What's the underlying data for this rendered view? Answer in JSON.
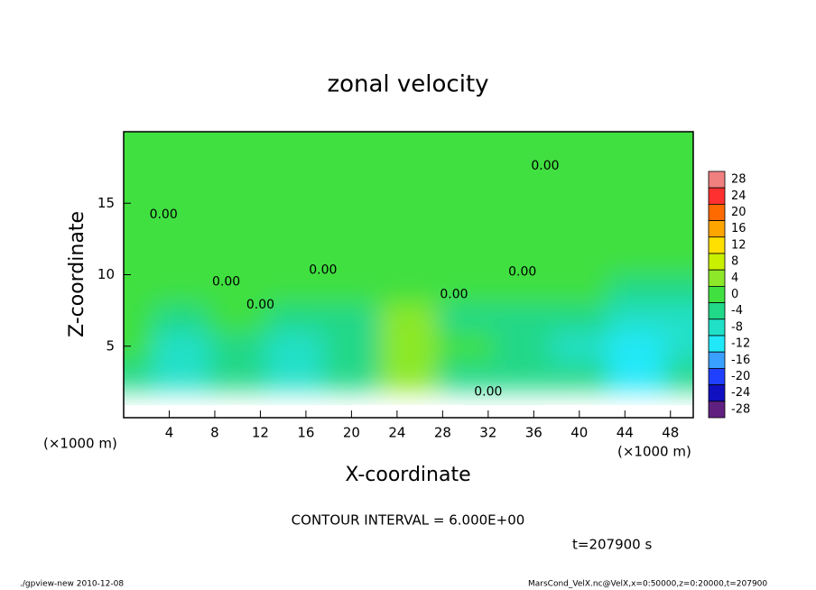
{
  "chart_data": {
    "type": "contour",
    "title": "zonal velocity",
    "x_label": "X-coordinate",
    "y_label": "Z-coordinate",
    "x_unit_left": "(×1000 m)",
    "x_unit_right": "(×1000 m)",
    "contour_interval": "CONTOUR INTERVAL = 6.000E+00",
    "time_label": "t=207900 s",
    "footer_left": "./gpview-new   2010-12-08",
    "footer_right": "MarsCond_VelX.nc@VelX,x=0:50000,z=0:20000,t=207900",
    "xlim": [
      0,
      50
    ],
    "ylim": [
      0,
      20
    ],
    "xticks": [
      4,
      8,
      12,
      16,
      20,
      24,
      28,
      32,
      36,
      40,
      44,
      48
    ],
    "yticks": [
      5,
      10,
      15
    ],
    "x": [
      0,
      5,
      10,
      15,
      20,
      25,
      30,
      35,
      40,
      45,
      50
    ],
    "y": [
      1,
      3,
      5,
      7,
      9,
      11,
      15,
      19
    ],
    "z": [
      [
        -5,
        -3,
        0,
        -7,
        -3,
        -5,
        -6,
        -2,
        6,
        -6,
        -5
      ],
      [
        -4,
        -6,
        -3,
        -6,
        -2,
        4,
        -4,
        -2,
        -4,
        -9,
        -4
      ],
      [
        2,
        -6,
        -2,
        -7,
        -4,
        6,
        2,
        -4,
        -6,
        -9,
        -7
      ],
      [
        3,
        -2,
        2,
        -2,
        -2,
        4,
        -2,
        -3,
        -3,
        -6,
        -8
      ],
      [
        1,
        0,
        1,
        0,
        1,
        1,
        0,
        1,
        0,
        -1,
        -2
      ],
      [
        1,
        2,
        1,
        1,
        2,
        1,
        1,
        2,
        1,
        1,
        1
      ],
      [
        1,
        1,
        2,
        2,
        2,
        2,
        2,
        2,
        2,
        2,
        2
      ],
      [
        1,
        1,
        1,
        2,
        2,
        2,
        2,
        2,
        2,
        2,
        2
      ]
    ],
    "contour_labels": [
      "0.00",
      "0.00",
      "0.00",
      "0.00",
      "0.00",
      "0.00",
      "0.00",
      "0.00"
    ],
    "colorbar": {
      "levels": [
        28,
        24,
        20,
        16,
        12,
        8,
        4,
        0,
        -4,
        -8,
        -12,
        -16,
        -20,
        -24,
        -28
      ],
      "colors": [
        "#f08080",
        "#ff3030",
        "#ff6a00",
        "#ffa500",
        "#ffe000",
        "#c8f000",
        "#8ce828",
        "#40e040",
        "#20d888",
        "#20e0c8",
        "#20e8f8",
        "#3aa0ff",
        "#2040ff",
        "#1010c0",
        "#602080"
      ]
    }
  }
}
